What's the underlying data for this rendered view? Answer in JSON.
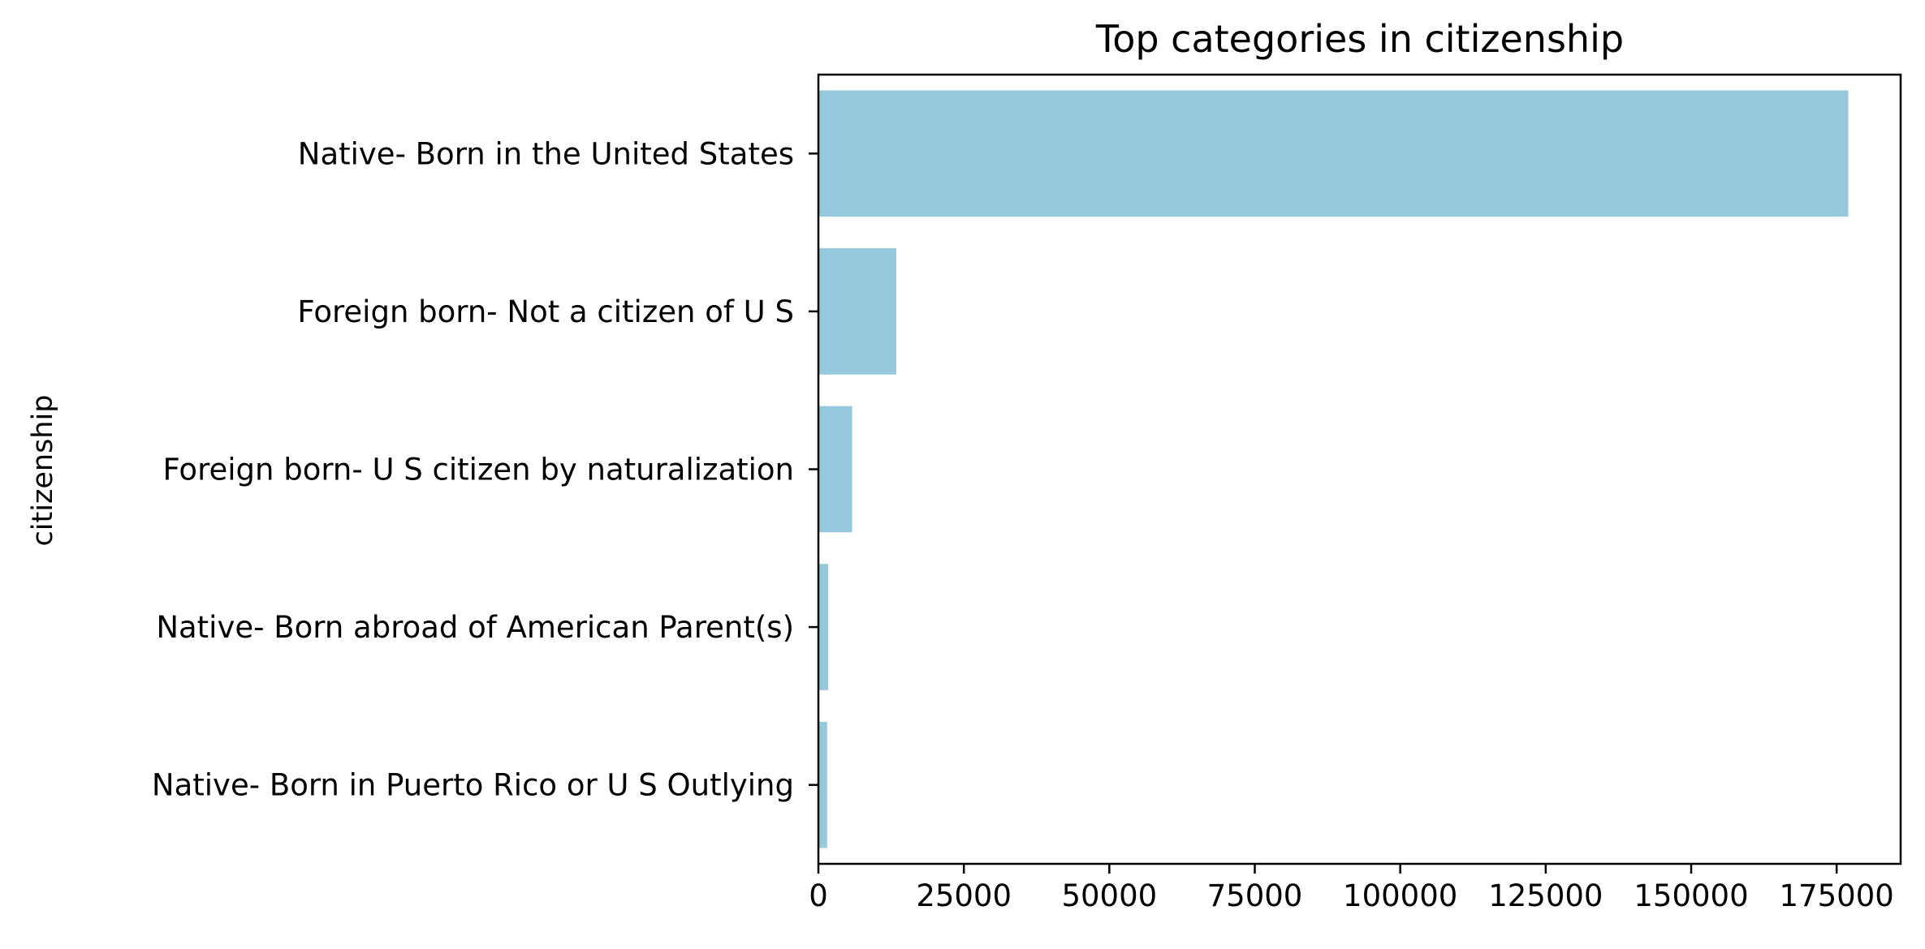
{
  "chart_data": {
    "type": "bar",
    "orientation": "horizontal",
    "title": "Top categories in citizenship",
    "xlabel": "",
    "ylabel": "citizenship",
    "categories": [
      "Native- Born in the United States",
      "Foreign born- Not a citizen of U S ",
      "Foreign born- U S citizen by naturalization",
      "Native- Born abroad of American Parent(s)",
      "Native- Born in Puerto Rico or U S Outlying"
    ],
    "values": [
      177000,
      13400,
      5800,
      1700,
      1500
    ],
    "xlim": [
      0,
      186000
    ],
    "xticks": [
      0,
      25000,
      50000,
      75000,
      100000,
      125000,
      150000,
      175000
    ],
    "xtick_labels": [
      "0",
      "25000",
      "50000",
      "75000",
      "100000",
      "125000",
      "150000",
      "175000"
    ],
    "bar_color": "#96c9de",
    "grid": false,
    "legend": "none"
  }
}
